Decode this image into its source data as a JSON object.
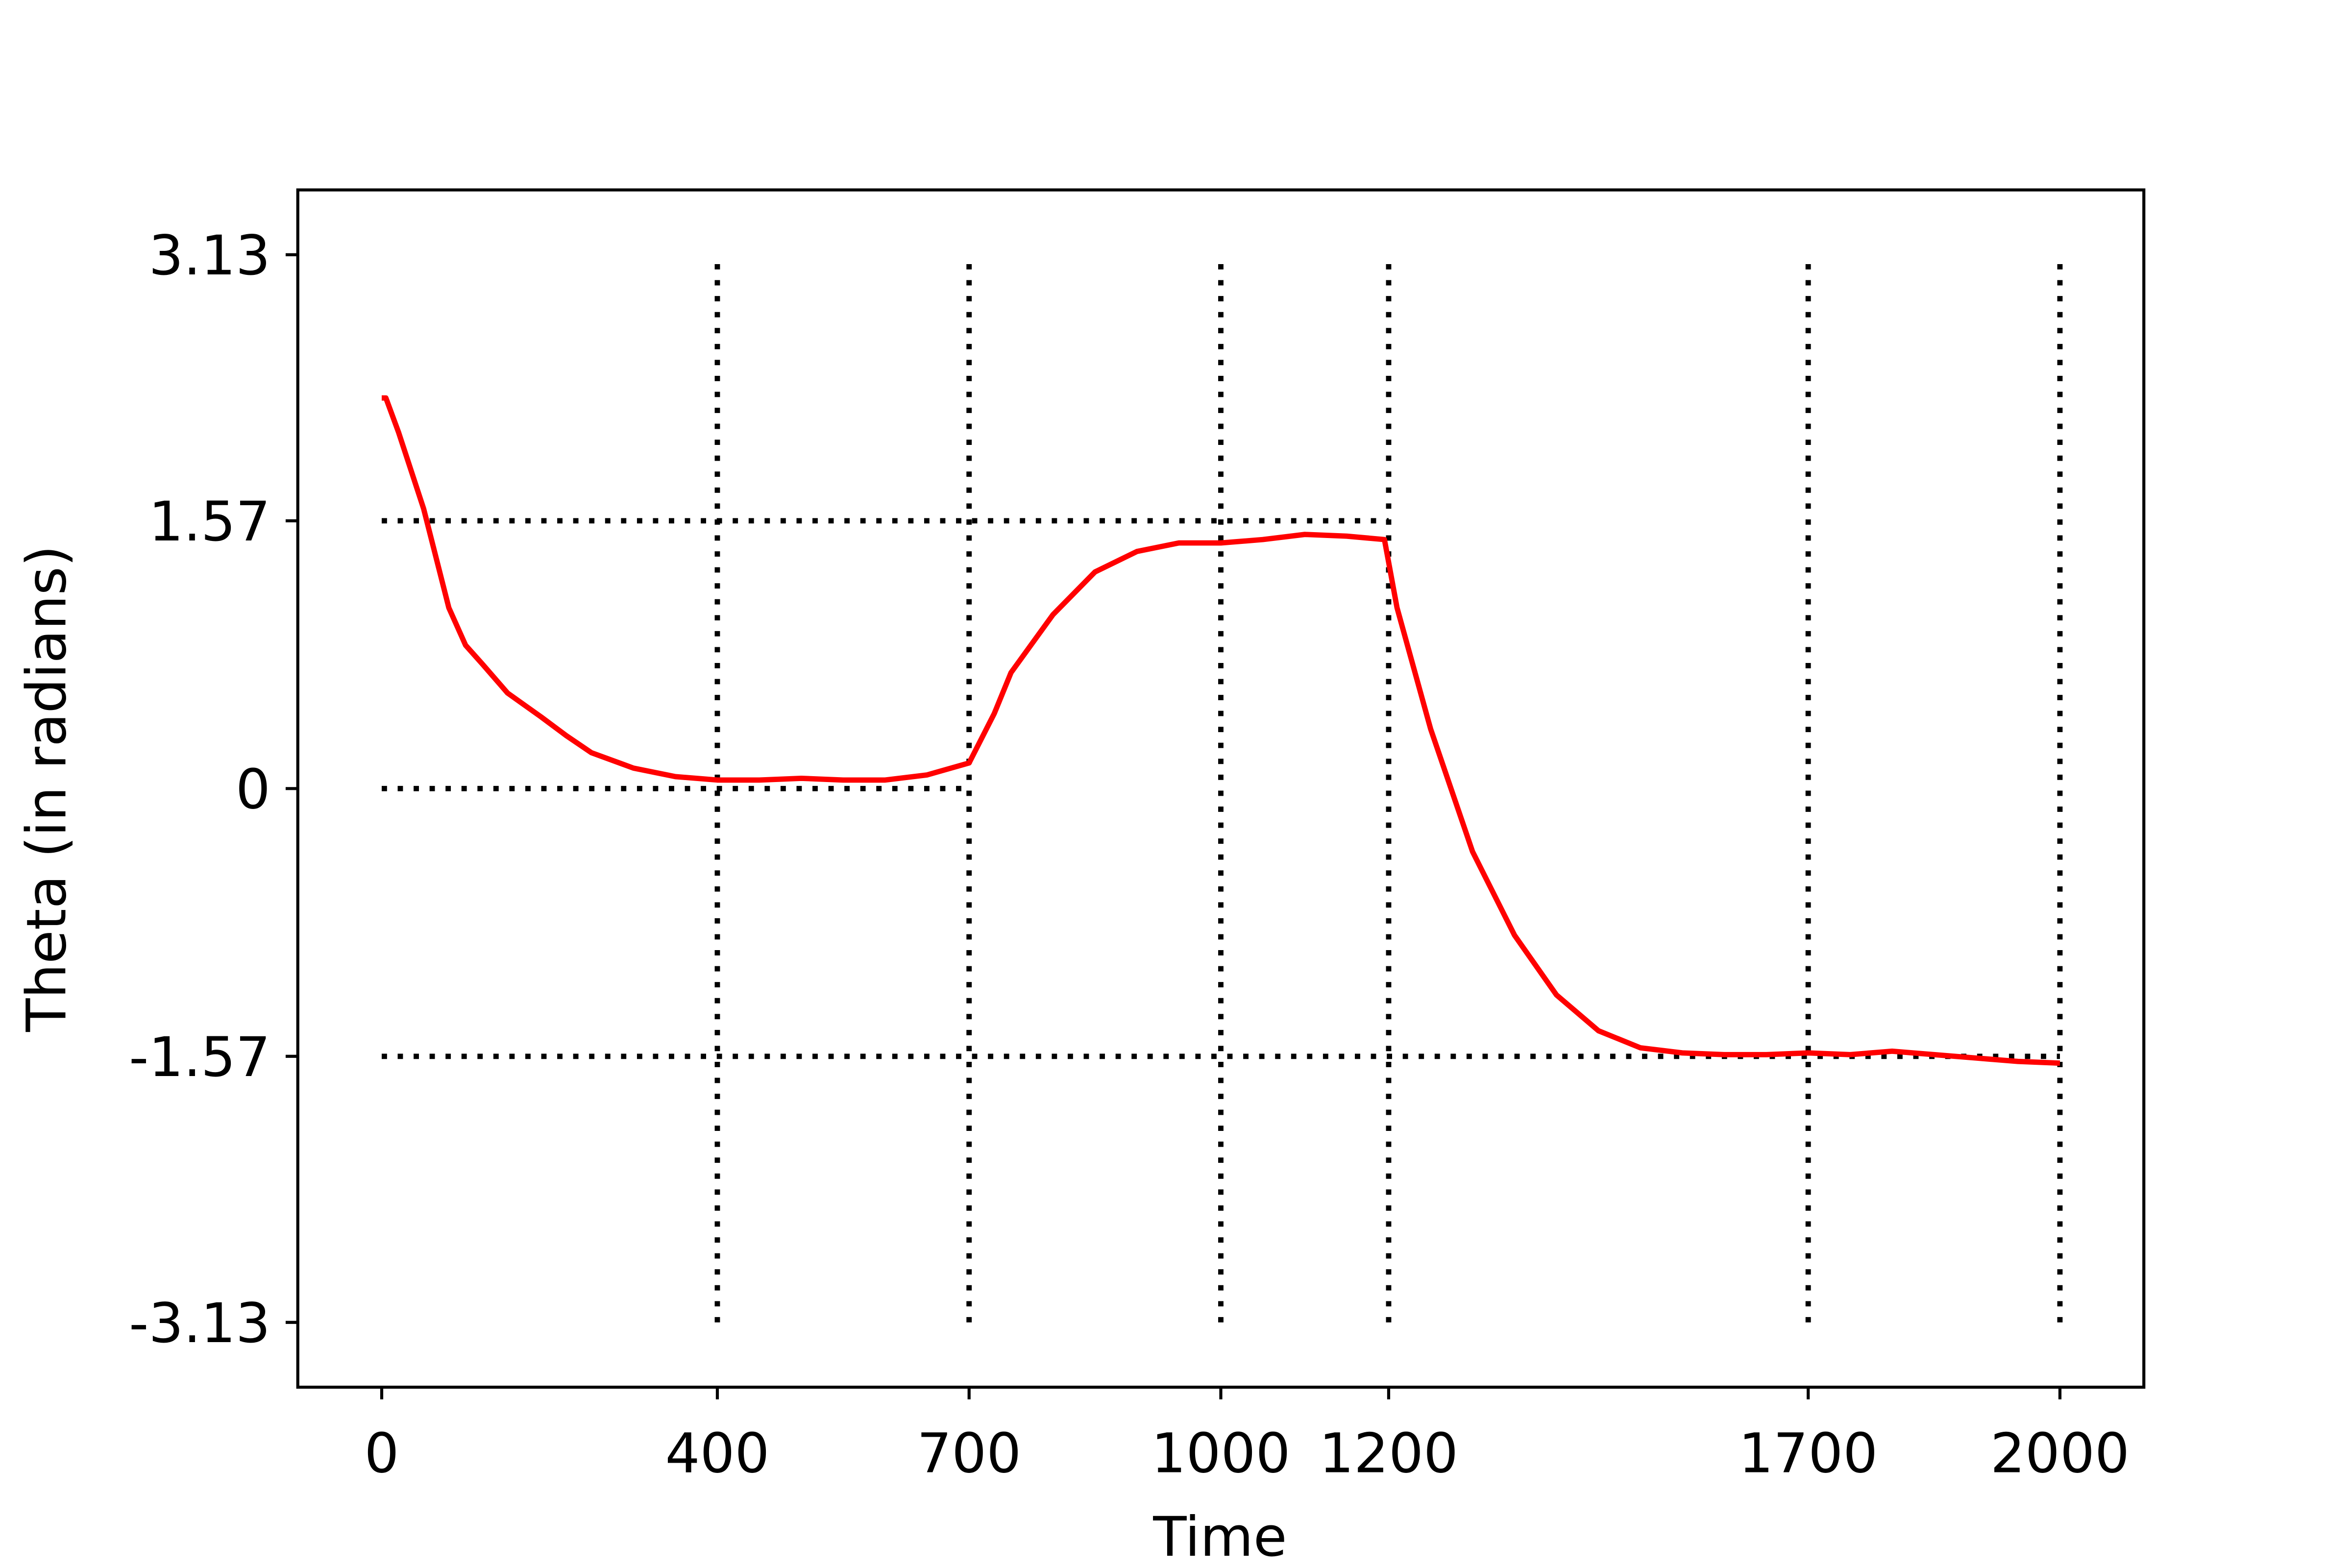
{
  "chart_data": {
    "type": "line",
    "xlabel": "Time",
    "ylabel": "Theta (in radians)",
    "x": [
      0,
      5,
      20,
      50,
      80,
      100,
      120,
      150,
      190,
      220,
      250,
      300,
      350,
      400,
      450,
      500,
      550,
      600,
      650,
      700,
      730,
      750,
      800,
      850,
      900,
      950,
      1000,
      1050,
      1100,
      1150,
      1195,
      1210,
      1250,
      1300,
      1350,
      1400,
      1450,
      1500,
      1550,
      1600,
      1650,
      1700,
      1750,
      1800,
      1850,
      1900,
      1950,
      2000
    ],
    "series": [
      {
        "name": "theta",
        "color": "#ff0000",
        "values": [
          2.29,
          2.29,
          2.09,
          1.64,
          1.06,
          0.84,
          0.73,
          0.56,
          0.42,
          0.31,
          0.21,
          0.12,
          0.07,
          0.05,
          0.05,
          0.06,
          0.05,
          0.05,
          0.08,
          0.15,
          0.44,
          0.68,
          1.02,
          1.27,
          1.39,
          1.44,
          1.44,
          1.46,
          1.49,
          1.48,
          1.46,
          1.06,
          0.35,
          -0.37,
          -0.86,
          -1.21,
          -1.42,
          -1.52,
          -1.55,
          -1.56,
          -1.56,
          -1.55,
          -1.56,
          -1.54,
          -1.56,
          -1.58,
          -1.6,
          -1.61
        ]
      }
    ],
    "xlim": [
      -100,
      2100
    ],
    "ylim": [
      -3.51,
      3.51
    ],
    "xticks": [
      0,
      400,
      700,
      1000,
      1200,
      1700,
      2000
    ],
    "yticks": [
      -3.13,
      -1.57,
      0,
      1.57,
      3.13
    ],
    "hlines": [
      {
        "y": 1.57,
        "xmin": 0,
        "xmax": 1200
      },
      {
        "y": 0,
        "xmin": 0,
        "xmax": 700
      },
      {
        "y": -1.57,
        "xmin": 0,
        "xmax": 2000
      }
    ],
    "vlines": [
      {
        "x": 400,
        "ymin": -3.13,
        "ymax": 3.13
      },
      {
        "x": 700,
        "ymin": -3.13,
        "ymax": 3.13
      },
      {
        "x": 1000,
        "ymin": -3.13,
        "ymax": 3.13
      },
      {
        "x": 1200,
        "ymin": -3.13,
        "ymax": 3.13
      },
      {
        "x": 1700,
        "ymin": -3.13,
        "ymax": 3.13
      },
      {
        "x": 2000,
        "ymin": -3.13,
        "ymax": 3.13
      }
    ],
    "ref_color": "#000000"
  }
}
